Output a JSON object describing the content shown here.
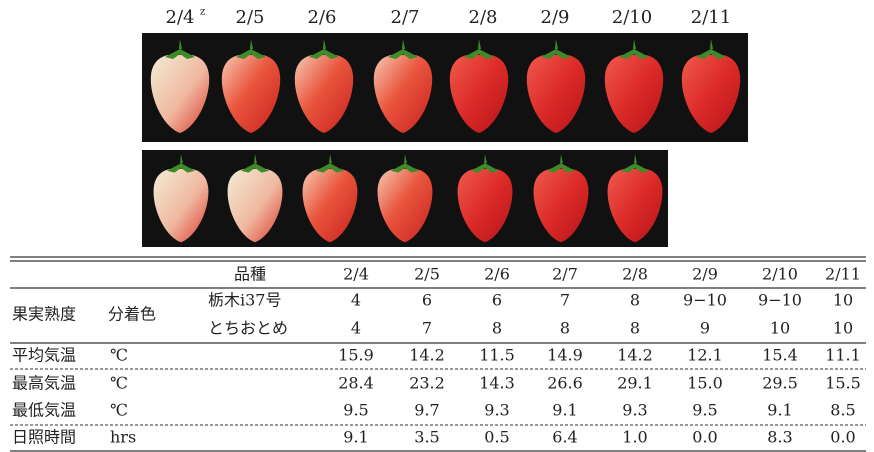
{
  "photo_labels": [
    "2/4",
    "2/5",
    "2/6",
    "2/7",
    "2/8",
    "2/9",
    "2/10",
    "2/11"
  ],
  "photo_note_mark": "z",
  "table": {
    "header": {
      "variety": "品種",
      "dates": [
        "2/4",
        "2/5",
        "2/6",
        "2/7",
        "2/8",
        "2/9",
        "2/10",
        "2/11"
      ]
    },
    "ripeness": {
      "label": "果実熟度",
      "sublabel": "分着色",
      "rows": [
        {
          "variety": "栃木i37号",
          "values": [
            "4",
            "6",
            "6",
            "7",
            "8",
            "9−10",
            "9−10",
            "10"
          ]
        },
        {
          "variety": "とちおとめ",
          "values": [
            "4",
            "7",
            "8",
            "8",
            "8",
            "9",
            "10",
            "10"
          ]
        }
      ]
    },
    "weather": [
      {
        "label": "平均気温",
        "unit": "℃",
        "values": [
          "15.9",
          "14.2",
          "11.5",
          "14.9",
          "14.2",
          "12.1",
          "15.4",
          "11.1"
        ]
      },
      {
        "label": "最高気温",
        "unit": "℃",
        "values": [
          "28.4",
          "23.2",
          "14.3",
          "26.6",
          "29.1",
          "15.0",
          "29.5",
          "15.5"
        ]
      },
      {
        "label": "最低気温",
        "unit": "℃",
        "values": [
          "9.5",
          "9.7",
          "9.3",
          "9.1",
          "9.3",
          "9.5",
          "9.1",
          "8.5"
        ]
      },
      {
        "label": "日照時間",
        "unit": "hrs",
        "values": [
          "9.1",
          "3.5",
          "0.5",
          "6.4",
          "1.0",
          "0.0",
          "8.3",
          "0.0"
        ]
      }
    ]
  }
}
